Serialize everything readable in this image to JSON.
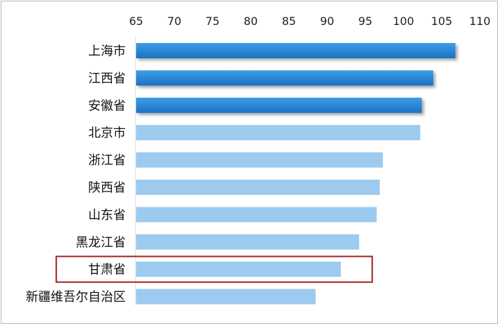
{
  "chart_data": {
    "type": "bar",
    "orientation": "horizontal",
    "title": "",
    "xlabel": "",
    "ylabel": "",
    "x_axis_position": "top",
    "xlim": [
      65,
      110
    ],
    "x_ticks": [
      "65",
      "70",
      "75",
      "80",
      "85",
      "90",
      "95",
      "100",
      "105",
      "110"
    ],
    "categories": [
      "上海市",
      "江西省",
      "安徽省",
      "北京市",
      "浙江省",
      "陕西省",
      "山东省",
      "黑龙江省",
      "甘肃省",
      "新疆维吾尔自治区"
    ],
    "values": [
      106.8,
      103.9,
      102.4,
      102.2,
      97.3,
      96.9,
      96.5,
      94.2,
      91.8,
      88.5
    ],
    "emphasized_categories": [
      "上海市",
      "江西省",
      "安徽省"
    ],
    "highlighted_category": "甘肃省",
    "grid": false,
    "legend": "none",
    "colors": {
      "emphasis": "#1f7fcf",
      "emphasis_light": "#3e9de6",
      "normal": "#9dcaef",
      "highlight_box": "#a8322d",
      "axis_line": "#d8d8d8",
      "frame": "#b7b7b7"
    }
  }
}
